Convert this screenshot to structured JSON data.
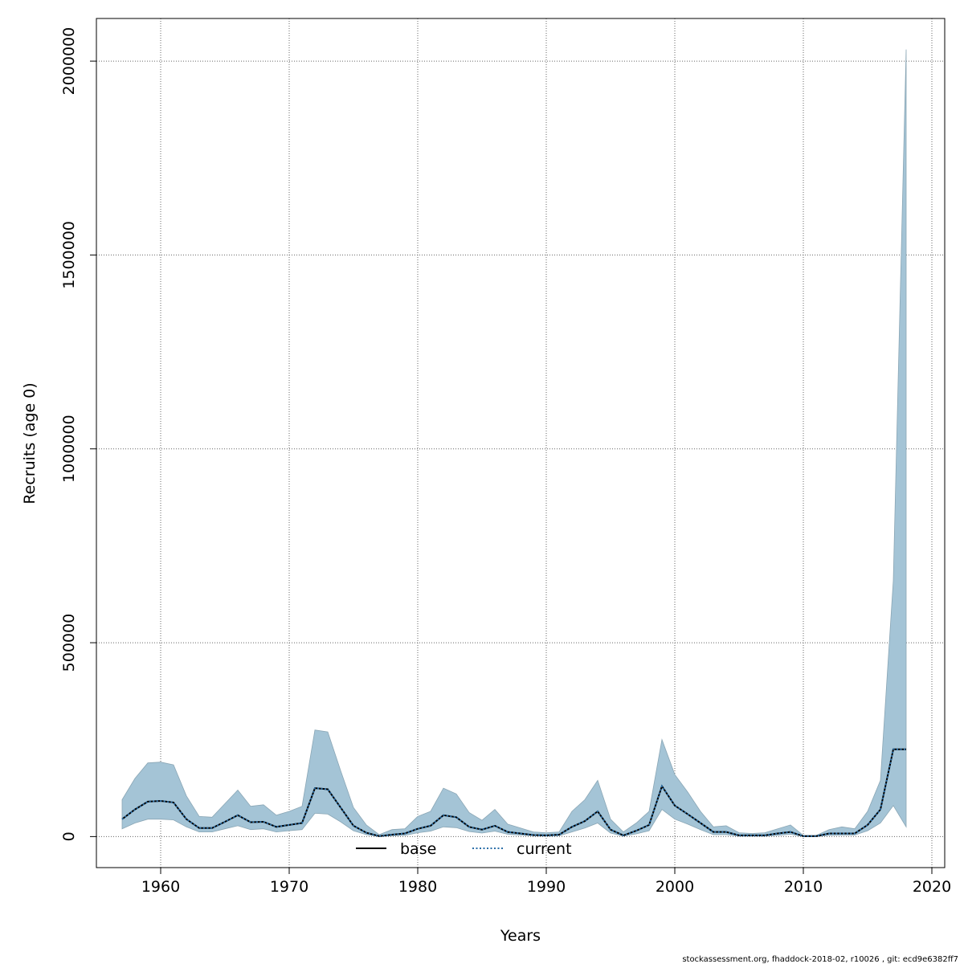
{
  "chart_data": {
    "type": "line",
    "title": "",
    "xlabel": "Years",
    "ylabel": "Recruits (age 0)",
    "xlim": [
      1955,
      2021
    ],
    "ylim": [
      -80000,
      2110000
    ],
    "x_ticks": [
      1960,
      1970,
      1980,
      1990,
      2000,
      2010,
      2020
    ],
    "y_ticks": [
      0,
      500000,
      1000000,
      1500000,
      2000000
    ],
    "x_tick_labels": [
      "1960",
      "1970",
      "1980",
      "1990",
      "2000",
      "2010",
      "2020"
    ],
    "y_tick_labels": [
      "0",
      "500000",
      "1000000",
      "1500000",
      "2000000"
    ],
    "grid": true,
    "x": [
      1957,
      1958,
      1959,
      1960,
      1961,
      1962,
      1963,
      1964,
      1965,
      1966,
      1967,
      1968,
      1969,
      1970,
      1971,
      1972,
      1973,
      1974,
      1975,
      1976,
      1977,
      1978,
      1979,
      1980,
      1981,
      1982,
      1983,
      1984,
      1985,
      1986,
      1987,
      1988,
      1989,
      1990,
      1991,
      1992,
      1993,
      1994,
      1995,
      1996,
      1997,
      1998,
      1999,
      2000,
      2001,
      2002,
      2003,
      2004,
      2005,
      2006,
      2007,
      2008,
      2009,
      2010,
      2011,
      2012,
      2013,
      2014,
      2015,
      2016,
      2017,
      2018
    ],
    "series": [
      {
        "name": "base",
        "style": "solid",
        "color": "#000000",
        "values": [
          45000,
          70000,
          90000,
          92000,
          88000,
          45000,
          22000,
          22000,
          38000,
          55000,
          37000,
          38000,
          25000,
          30000,
          35000,
          125000,
          122000,
          75000,
          28000,
          10000,
          1000,
          5000,
          8000,
          20000,
          28000,
          55000,
          50000,
          25000,
          18000,
          28000,
          12000,
          8000,
          4000,
          3000,
          5000,
          25000,
          40000,
          65000,
          18000,
          3000,
          15000,
          30000,
          130000,
          80000,
          58000,
          35000,
          12000,
          12000,
          3000,
          3000,
          3000,
          8000,
          12000,
          1000,
          1000,
          8000,
          8000,
          8000,
          30000,
          70000,
          225000,
          225000
        ]
      },
      {
        "name": "current",
        "style": "dotted",
        "color": "#2b6fa8",
        "values": [
          45000,
          70000,
          90000,
          92000,
          88000,
          45000,
          22000,
          22000,
          38000,
          55000,
          37000,
          38000,
          25000,
          30000,
          35000,
          125000,
          122000,
          75000,
          28000,
          10000,
          1000,
          5000,
          8000,
          20000,
          28000,
          55000,
          50000,
          25000,
          18000,
          28000,
          12000,
          8000,
          4000,
          3000,
          5000,
          25000,
          40000,
          65000,
          18000,
          3000,
          15000,
          30000,
          130000,
          80000,
          58000,
          35000,
          12000,
          12000,
          3000,
          3000,
          3000,
          8000,
          12000,
          1000,
          1000,
          8000,
          8000,
          8000,
          30000,
          70000,
          225000,
          225000
        ]
      }
    ],
    "band": {
      "fill": "#a4c4d6",
      "lower": [
        20000,
        35000,
        45000,
        45000,
        43000,
        25000,
        12000,
        12000,
        20000,
        28000,
        18000,
        20000,
        12000,
        15000,
        18000,
        60000,
        58000,
        38000,
        15000,
        5000,
        300,
        2000,
        3000,
        10000,
        14000,
        25000,
        23000,
        13000,
        9000,
        14000,
        6000,
        4000,
        2000,
        1000,
        2000,
        12000,
        22000,
        35000,
        9000,
        1000,
        7000,
        15000,
        70000,
        45000,
        32000,
        18000,
        5000,
        5000,
        1000,
        1000,
        1000,
        3000,
        6000,
        300,
        300,
        3000,
        4000,
        4000,
        15000,
        35000,
        80000,
        25000
      ],
      "upper": [
        95000,
        150000,
        190000,
        192000,
        185000,
        105000,
        52000,
        50000,
        85000,
        120000,
        78000,
        82000,
        55000,
        65000,
        78000,
        275000,
        270000,
        170000,
        75000,
        30000,
        5000,
        18000,
        20000,
        52000,
        65000,
        125000,
        110000,
        62000,
        42000,
        70000,
        32000,
        22000,
        12000,
        10000,
        12000,
        65000,
        95000,
        145000,
        45000,
        12000,
        35000,
        65000,
        250000,
        160000,
        115000,
        65000,
        25000,
        28000,
        10000,
        8000,
        10000,
        20000,
        30000,
        3000,
        3000,
        18000,
        25000,
        20000,
        65000,
        145000,
        660000,
        2030000
      ]
    },
    "legend": {
      "placement": "bottom-center",
      "labels": [
        "base",
        "current"
      ]
    },
    "footer": "stockassessment.org, fhaddock-2018-02, r10026 , git: ecd9e6382ff7"
  }
}
